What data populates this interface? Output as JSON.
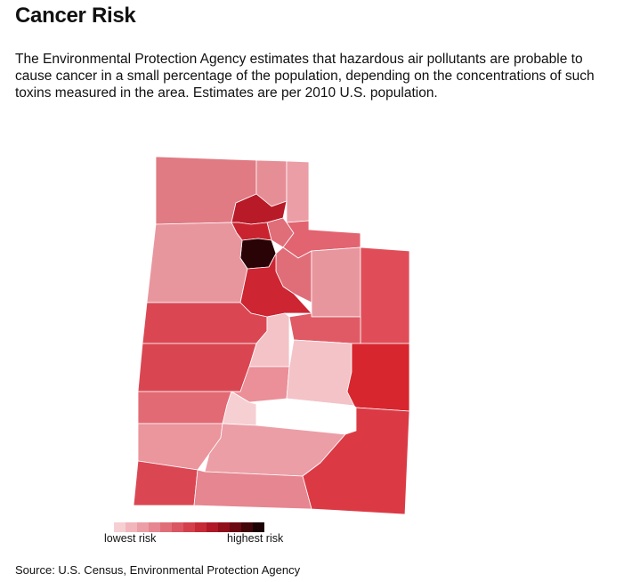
{
  "title": "Cancer Risk",
  "description": "The Environmental Protection Agency estimates that hazardous air pollutants are probable to cause cancer in a small percentage of the population, depending on the concentrations of such toxins measured in the area. Estimates are per 2010 U.S. population.",
  "legend": {
    "low_label": "lowest risk",
    "high_label": "highest risk",
    "colors": [
      "#f6cfd3",
      "#f1b6bc",
      "#eb9ea6",
      "#e68690",
      "#e06e79",
      "#da5662",
      "#d3404c",
      "#c62a37",
      "#b01827",
      "#8f0f1b",
      "#6a0912",
      "#42050a",
      "#1c0204"
    ]
  },
  "source": "Source: U.S. Census, Environmental Protection Agency",
  "counties": {
    "box-elder": "#e07a83",
    "cache": "#e68e96",
    "rich": "#eb9ea6",
    "weber": "#b81a28",
    "morgan": "#e06e79",
    "davis": "#c9232f",
    "salt-lake": "#2a0306",
    "summit": "#e26470",
    "daggett": "#ffffff",
    "tooele": "#e8969e",
    "wasatch": "#e06e79",
    "utah": "#cd2532",
    "duchesne": "#e8969e",
    "uintah": "#e04d58",
    "juab": "#da4753",
    "sanpete": "#f3c3c8",
    "carbon": "#e05a65",
    "millard": "#d94652",
    "sevier": "#eb8f98",
    "emery": "#f3c3c8",
    "grand": "#d8262f",
    "beaver": "#e26a74",
    "piute": "#f6cfd3",
    "wayne": "#ffffff",
    "iron": "#eb959d",
    "garfield": "#eb9ea6",
    "san-juan": "#db3a45",
    "washington": "#da4753",
    "kane": "#e68690"
  }
}
